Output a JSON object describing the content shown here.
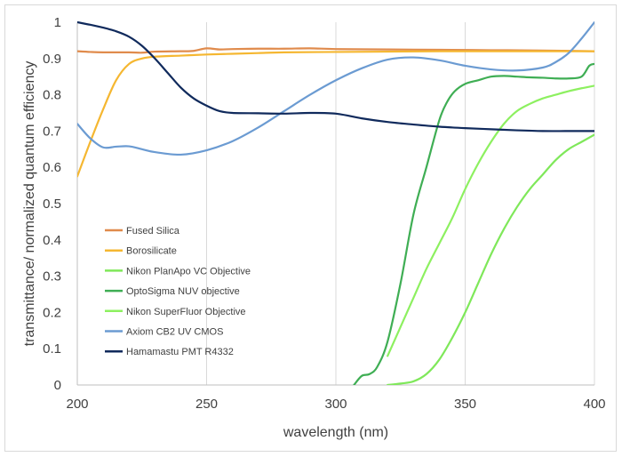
{
  "chart_data": {
    "type": "line",
    "title": "",
    "xlabel": "wavelength (nm)",
    "ylabel": "transmittance/ normalized quantum efficiency",
    "xlim": [
      200,
      400
    ],
    "ylim": [
      0,
      1
    ],
    "xticks": [
      200,
      250,
      300,
      350,
      400
    ],
    "yticks": [
      0,
      0.1,
      0.2,
      0.3,
      0.4,
      0.5,
      0.6,
      0.7,
      0.8,
      0.9,
      1
    ],
    "grid": "vertical",
    "legend_position": "lower-left",
    "series": [
      {
        "name": "Fused Silica",
        "color": "#e08b4c",
        "x": [
          200,
          205,
          210,
          220,
          225,
          230,
          240,
          245,
          250,
          255,
          260,
          270,
          280,
          290,
          300,
          320,
          340,
          360,
          380,
          400
        ],
        "y": [
          0.92,
          0.918,
          0.917,
          0.917,
          0.916,
          0.919,
          0.92,
          0.921,
          0.928,
          0.925,
          0.926,
          0.927,
          0.927,
          0.928,
          0.926,
          0.925,
          0.924,
          0.923,
          0.922,
          0.92
        ]
      },
      {
        "name": "Borosilicate",
        "color": "#f5b731",
        "x": [
          200,
          205,
          210,
          215,
          220,
          225,
          230,
          240,
          250,
          260,
          270,
          280,
          300,
          320,
          340,
          360,
          380,
          400
        ],
        "y": [
          0.575,
          0.67,
          0.76,
          0.84,
          0.885,
          0.9,
          0.905,
          0.908,
          0.911,
          0.913,
          0.915,
          0.917,
          0.918,
          0.919,
          0.92,
          0.92,
          0.92,
          0.92
        ]
      },
      {
        "name": "Nikon PlanApo VC Objective",
        "color": "#7fe85a",
        "x": [
          320,
          325,
          330,
          335,
          340,
          345,
          350,
          355,
          360,
          365,
          370,
          375,
          380,
          385,
          390,
          395,
          400
        ],
        "y": [
          0.0,
          0.004,
          0.01,
          0.03,
          0.07,
          0.13,
          0.2,
          0.28,
          0.36,
          0.43,
          0.49,
          0.54,
          0.58,
          0.62,
          0.65,
          0.67,
          0.69
        ]
      },
      {
        "name": "OptoSigma NUV objective",
        "color": "#3fae54",
        "x": [
          307,
          310,
          313,
          316,
          320,
          325,
          330,
          335,
          340,
          343,
          346,
          350,
          355,
          360,
          365,
          370,
          375,
          380,
          385,
          390,
          395,
          398,
          400
        ],
        "y": [
          0.0,
          0.025,
          0.03,
          0.05,
          0.12,
          0.28,
          0.47,
          0.6,
          0.73,
          0.78,
          0.81,
          0.83,
          0.84,
          0.85,
          0.852,
          0.85,
          0.848,
          0.847,
          0.845,
          0.845,
          0.85,
          0.88,
          0.885
        ]
      },
      {
        "name": "Nikon SuperFluor Objective",
        "color": "#8df060",
        "x": [
          320,
          325,
          330,
          335,
          340,
          345,
          350,
          355,
          360,
          365,
          370,
          375,
          380,
          385,
          390,
          395,
          400
        ],
        "y": [
          0.08,
          0.16,
          0.24,
          0.32,
          0.39,
          0.46,
          0.54,
          0.61,
          0.67,
          0.72,
          0.755,
          0.775,
          0.79,
          0.8,
          0.81,
          0.818,
          0.825
        ]
      },
      {
        "name": "Axiom CB2 UV CMOS",
        "color": "#6b9bd2",
        "x": [
          200,
          205,
          210,
          215,
          220,
          225,
          230,
          240,
          250,
          260,
          270,
          280,
          290,
          300,
          310,
          320,
          330,
          340,
          350,
          360,
          370,
          380,
          385,
          390,
          395,
          400
        ],
        "y": [
          0.72,
          0.68,
          0.655,
          0.657,
          0.658,
          0.65,
          0.642,
          0.635,
          0.647,
          0.672,
          0.71,
          0.755,
          0.8,
          0.84,
          0.873,
          0.897,
          0.903,
          0.895,
          0.88,
          0.87,
          0.867,
          0.875,
          0.89,
          0.915,
          0.955,
          1.0
        ]
      },
      {
        "name": "Hamamastu PMT R4332",
        "color": "#102a5c",
        "x": [
          200,
          205,
          210,
          215,
          220,
          225,
          230,
          235,
          240,
          245,
          250,
          255,
          260,
          270,
          280,
          290,
          300,
          310,
          320,
          330,
          340,
          350,
          360,
          370,
          380,
          390,
          400
        ],
        "y": [
          1.0,
          0.993,
          0.985,
          0.975,
          0.96,
          0.935,
          0.9,
          0.86,
          0.82,
          0.79,
          0.77,
          0.755,
          0.75,
          0.749,
          0.748,
          0.75,
          0.748,
          0.735,
          0.725,
          0.718,
          0.712,
          0.708,
          0.705,
          0.702,
          0.7,
          0.7,
          0.7
        ]
      }
    ]
  }
}
